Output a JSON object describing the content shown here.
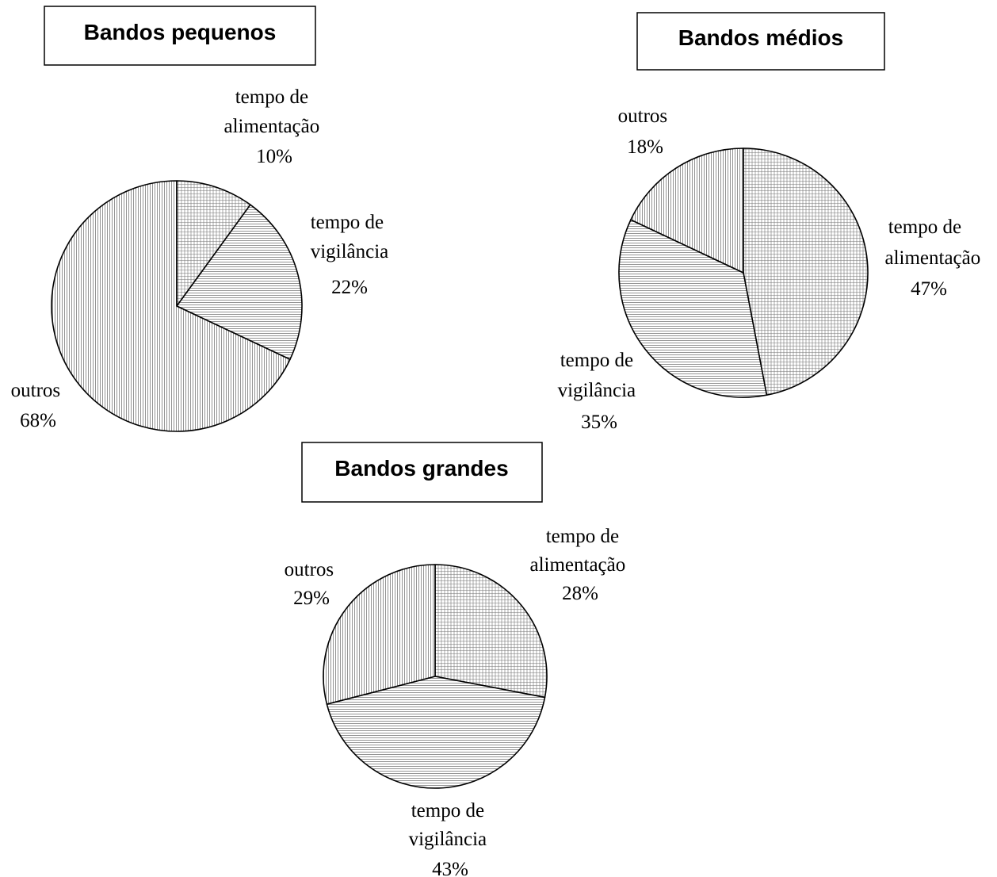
{
  "chart_data": [
    {
      "type": "pie",
      "title": "Bandos pequenos",
      "slices": [
        {
          "label_lines": [
            "tempo de",
            "alimentação"
          ],
          "pct_label": "10%",
          "value": 10
        },
        {
          "label_lines": [
            "tempo de",
            "vigilância"
          ],
          "pct_label": "22%",
          "value": 22
        },
        {
          "label_lines": [
            "outros"
          ],
          "pct_label": "68%",
          "value": 68
        }
      ]
    },
    {
      "type": "pie",
      "title": "Bandos médios",
      "slices": [
        {
          "label_lines": [
            "tempo de",
            "alimentação"
          ],
          "pct_label": "47%",
          "value": 47
        },
        {
          "label_lines": [
            "tempo de",
            "vigilância"
          ],
          "pct_label": "35%",
          "value": 35
        },
        {
          "label_lines": [
            "outros"
          ],
          "pct_label": "18%",
          "value": 18
        }
      ]
    },
    {
      "type": "pie",
      "title": "Bandos grandes",
      "slices": [
        {
          "label_lines": [
            "tempo de",
            "alimentação"
          ],
          "pct_label": "28%",
          "value": 28
        },
        {
          "label_lines": [
            "tempo de",
            "vigilância"
          ],
          "pct_label": "43%",
          "value": 43
        },
        {
          "label_lines": [
            "outros"
          ],
          "pct_label": "29%",
          "value": 29
        }
      ]
    }
  ]
}
